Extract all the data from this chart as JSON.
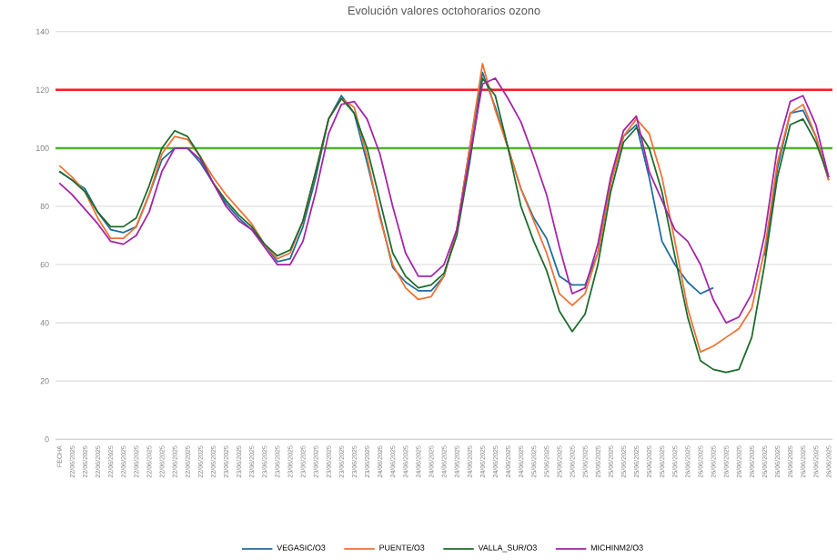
{
  "chart_data": {
    "type": "line",
    "title": "Evolución valores octohorarios ozono",
    "categories": [
      "FECHA",
      "22/06/2025",
      "22/06/2025",
      "22/06/2025",
      "22/06/2025",
      "22/06/2025",
      "22/06/2025",
      "22/06/2025",
      "22/06/2025",
      "22/06/2025",
      "22/06/2025",
      "22/06/2025",
      "22/06/2025",
      "23/06/2025",
      "23/06/2025",
      "23/06/2025",
      "23/06/2025",
      "23/06/2025",
      "23/06/2025",
      "23/06/2025",
      "23/06/2025",
      "23/06/2025",
      "23/06/2025",
      "23/06/2025",
      "23/06/2025",
      "24/06/2025",
      "24/06/2025",
      "24/06/2025",
      "24/06/2025",
      "24/06/2025",
      "24/06/2025",
      "24/06/2025",
      "24/06/2025",
      "24/06/2025",
      "24/06/2025",
      "24/06/2025",
      "24/06/2025",
      "25/06/2025",
      "25/06/2025",
      "25/06/2025",
      "25/06/2025",
      "25/06/2025",
      "25/06/2025",
      "25/06/2025",
      "25/06/2025",
      "25/06/2025",
      "25/06/2025",
      "25/06/2025",
      "25/06/2025",
      "26/06/2025",
      "26/06/2025",
      "26/06/2025",
      "26/06/2025",
      "26/06/2025",
      "26/06/2025",
      "26/06/2025",
      "26/06/2025",
      "26/06/2025",
      "26/06/2025",
      "26/06/2025",
      "26/06/2025"
    ],
    "series": [
      {
        "name": "VEGASIC/O3",
        "color": "#1f6d9e",
        "values": [
          92,
          89,
          86,
          78,
          72,
          71,
          73,
          84,
          96,
          100,
          100,
          95,
          88,
          81,
          76,
          72,
          67,
          61,
          62,
          73,
          90,
          110,
          118,
          112,
          95,
          77,
          59,
          54,
          51,
          51,
          56,
          72,
          100,
          126,
          114,
          100,
          86,
          76,
          69,
          56,
          53,
          53,
          64,
          88,
          104,
          108,
          90,
          68,
          60,
          54,
          50,
          52,
          null,
          null,
          null,
          63,
          93,
          112,
          113,
          104,
          89
        ]
      },
      {
        "name": "PUENTE/O3",
        "color": "#f07232",
        "values": [
          94,
          90,
          85,
          76,
          69,
          69,
          73,
          84,
          98,
          104,
          103,
          97,
          90,
          84,
          79,
          74,
          67,
          62,
          64,
          75,
          92,
          110,
          117,
          114,
          97,
          76,
          60,
          52,
          48,
          49,
          56,
          72,
          100,
          129,
          113,
          100,
          86,
          75,
          64,
          50,
          46,
          50,
          64,
          88,
          104,
          110,
          105,
          90,
          68,
          45,
          30,
          32,
          35,
          38,
          45,
          65,
          95,
          112,
          115,
          104,
          89
        ]
      },
      {
        "name": "VALLA_SUR/O3",
        "color": "#1e6b2c",
        "values": [
          92,
          89,
          85,
          78,
          73,
          73,
          76,
          87,
          100,
          106,
          104,
          97,
          88,
          82,
          77,
          73,
          67,
          63,
          65,
          75,
          92,
          110,
          117,
          112,
          100,
          82,
          64,
          56,
          52,
          53,
          57,
          70,
          95,
          124,
          118,
          100,
          80,
          68,
          58,
          44,
          37,
          43,
          60,
          85,
          102,
          107,
          100,
          85,
          63,
          42,
          27,
          24,
          23,
          24,
          35,
          60,
          90,
          108,
          110,
          102,
          90
        ]
      },
      {
        "name": "MICHINM2/O3",
        "color": "#a424a6",
        "values": [
          88,
          84,
          79,
          74,
          68,
          67,
          70,
          78,
          92,
          100,
          100,
          96,
          88,
          80,
          75,
          72,
          66,
          60,
          60,
          68,
          85,
          105,
          115,
          116,
          110,
          98,
          80,
          64,
          56,
          56,
          60,
          72,
          97,
          122,
          124,
          117,
          109,
          97,
          84,
          66,
          50,
          52,
          67,
          90,
          106,
          111,
          92,
          82,
          72,
          68,
          60,
          48,
          40,
          42,
          50,
          70,
          100,
          116,
          118,
          108,
          90
        ]
      }
    ],
    "ylim": [
      0,
      140
    ],
    "yticks": [
      0,
      20,
      40,
      60,
      80,
      100,
      120,
      140
    ],
    "grid": "y",
    "legend": "bottom",
    "ref_lines": [
      {
        "axis": "y",
        "value": 120,
        "color": "#ff1a1a"
      },
      {
        "axis": "y",
        "value": 100,
        "color": "#4db32b"
      }
    ]
  }
}
